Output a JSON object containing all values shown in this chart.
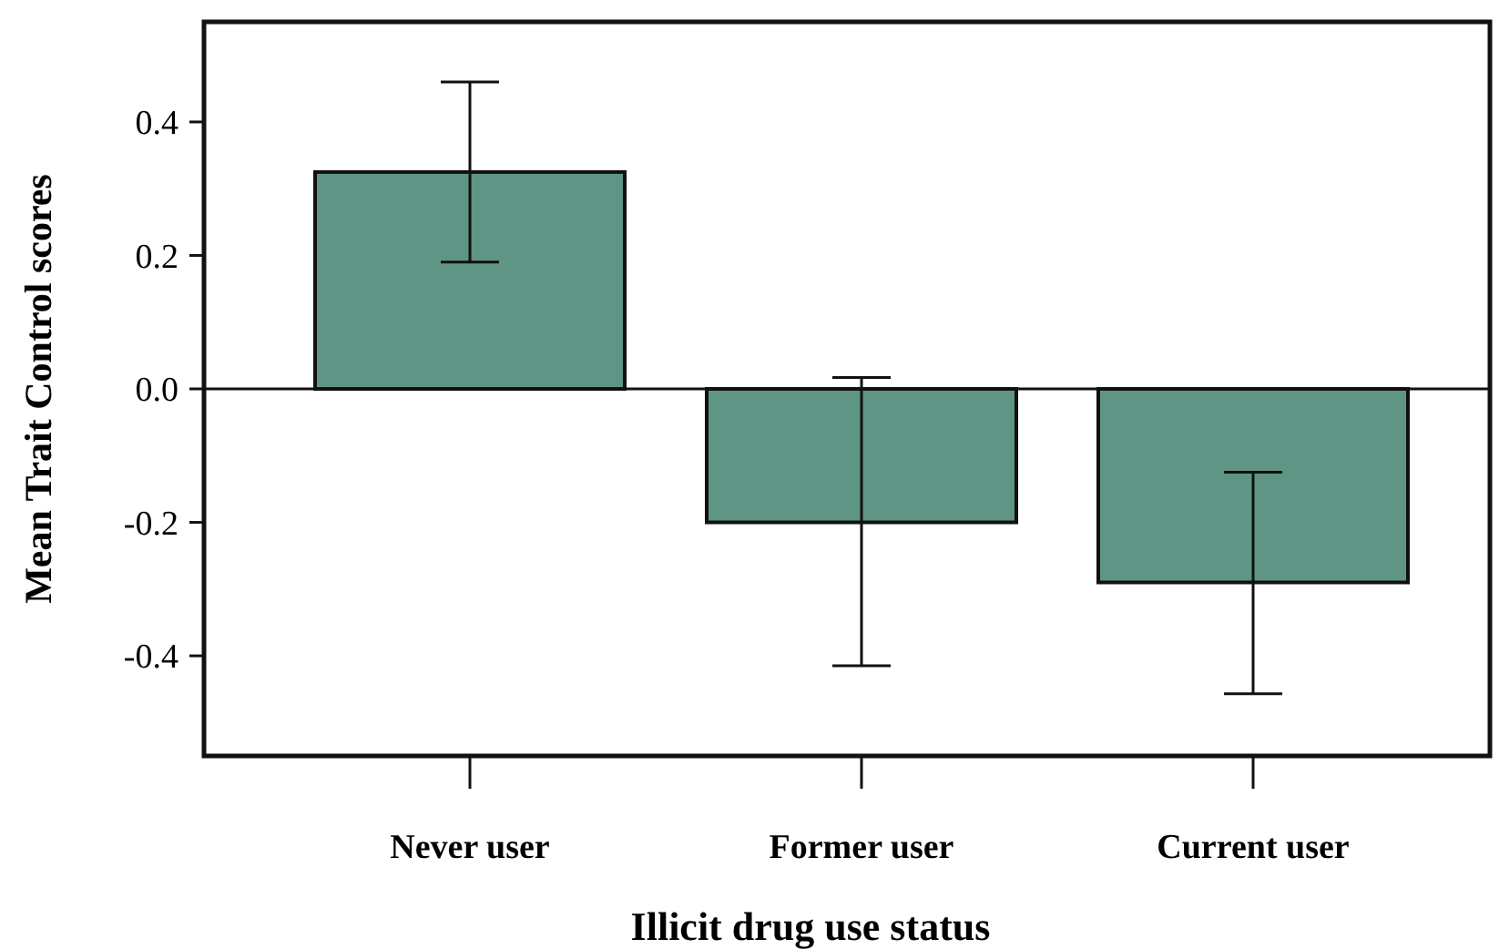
{
  "chart_data": {
    "type": "bar",
    "xlabel": "Illicit drug use status",
    "ylabel": "Mean Trait Control scores",
    "categories": [
      "Never user",
      "Former user",
      "Current user"
    ],
    "values": [
      0.325,
      -0.2,
      -0.29
    ],
    "color": "#5f9585",
    "errors": [
      [
        0.19,
        0.46
      ],
      [
        -0.415,
        0.017
      ],
      [
        -0.457,
        -0.125
      ]
    ],
    "ylim": [
      -0.55,
      0.55
    ],
    "yticks": [
      {
        "value": -0.4,
        "label": "-0.4"
      },
      {
        "value": -0.2,
        "label": "-0.2"
      },
      {
        "value": 0,
        "label": "0.0"
      },
      {
        "value": 0.2,
        "label": "0.2"
      },
      {
        "value": 0.4,
        "label": "0.4"
      }
    ]
  }
}
